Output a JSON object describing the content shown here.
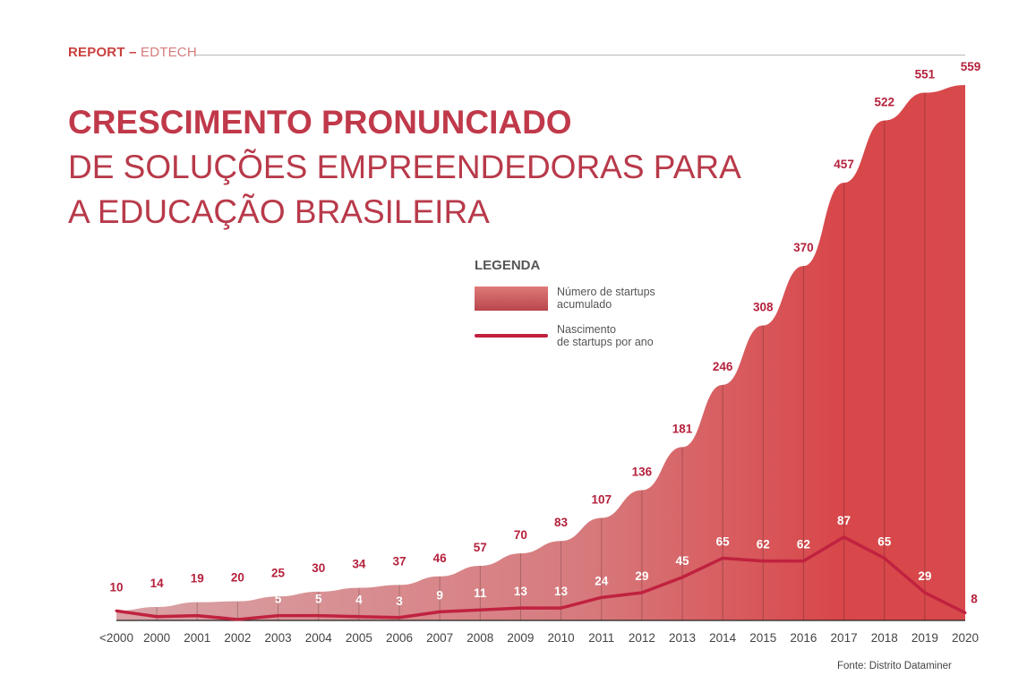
{
  "header": {
    "label_bold": "REPORT –",
    "label_light": "EDTECH"
  },
  "title": {
    "line1": "CRESCIMENTO PRONUNCIADO",
    "line2": "DE SOLUÇÕES EMPREENDEDORAS PARA",
    "line3": "A EDUCAÇÃO BRASILEIRA"
  },
  "legend": {
    "heading": "LEGENDA",
    "items": [
      {
        "label": "Número de startups\nacumulado"
      },
      {
        "label": "Nascimento\nde startups por ano"
      }
    ]
  },
  "source": "Fonte: Distrito Dataminer",
  "colors": {
    "accent": "#c0223f",
    "fill_light": "#d9a3a6",
    "fill_dark": "#d8474a",
    "label": "#b5213c"
  },
  "chart_data": {
    "type": "area",
    "categories": [
      "<2000",
      "2000",
      "2001",
      "2002",
      "2003",
      "2004",
      "2005",
      "2006",
      "2007",
      "2008",
      "2009",
      "2010",
      "2011",
      "2012",
      "2013",
      "2014",
      "2015",
      "2016",
      "2017",
      "2018",
      "2019",
      "2020"
    ],
    "series": [
      {
        "name": "Número de startups acumulado",
        "type": "area",
        "values": [
          10,
          14,
          19,
          20,
          25,
          30,
          34,
          37,
          46,
          57,
          70,
          83,
          107,
          136,
          181,
          246,
          308,
          370,
          457,
          522,
          551,
          559
        ]
      },
      {
        "name": "Nascimento de startups por ano",
        "type": "line",
        "values": [
          10,
          4,
          5,
          1,
          5,
          5,
          4,
          3,
          9,
          11,
          13,
          13,
          24,
          29,
          45,
          65,
          62,
          62,
          87,
          65,
          29,
          8
        ],
        "labels": [
          null,
          null,
          null,
          null,
          "5",
          "5",
          "4",
          "3",
          "9",
          "11",
          "13",
          "13",
          "24",
          "29",
          "45",
          "65",
          "62",
          "62",
          "87",
          "65",
          "29",
          "8"
        ]
      }
    ],
    "ylim": [
      0,
      559
    ],
    "grid": false,
    "legend": "center"
  }
}
